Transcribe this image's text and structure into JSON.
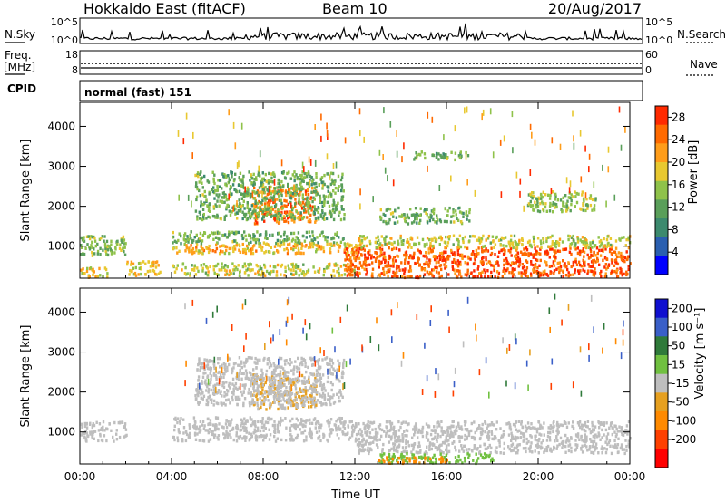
{
  "header": {
    "station": "Hokkaido East (fitACF)",
    "beam": "Beam 10",
    "date": "20/Aug/2017"
  },
  "noise_panel": {
    "left_label": "N.Sky",
    "right_label": "N.Search",
    "left_ticks": [
      "10^5",
      "10^0"
    ],
    "right_ticks": [
      "10^5",
      "10^0"
    ]
  },
  "freq_panel": {
    "left_label_1": "Freq.",
    "left_label_2": "[MHz]",
    "right_label": "Nave",
    "left_ticks": [
      "18",
      "8"
    ],
    "right_ticks": [
      "60",
      "0"
    ]
  },
  "cpid_panel": {
    "label": "CPID",
    "text": "normal (fast) 151"
  },
  "colors": {
    "power": [
      "#0000ff",
      "#2a5fb0",
      "#3c8a6e",
      "#5a9f5a",
      "#8fc24a",
      "#e8c830",
      "#ff9d1a",
      "#ff6a00",
      "#ff2a00"
    ],
    "velocity": [
      "#1010d0",
      "#3a5fc8",
      "#2f7a3a",
      "#70c040",
      "#bebebe",
      "#e6a020",
      "#ff8a00",
      "#ff4000",
      "#ff0000"
    ]
  },
  "chart_data": [
    {
      "type": "heatmap",
      "title": "Power",
      "xlabel": "",
      "ylabel": "Slant Range [km]",
      "x_ticks": [
        "00:00",
        "04:00",
        "08:00",
        "12:00",
        "16:00",
        "20:00",
        "00:00"
      ],
      "y_ticks": [
        "1000",
        "2000",
        "3000",
        "4000"
      ],
      "ylim": [
        200,
        4600
      ],
      "colorbar": {
        "label": "Power [dB]",
        "ticks": [
          "4",
          "8",
          "12",
          "16",
          "20",
          "24",
          "28"
        ],
        "range": [
          0,
          30
        ]
      },
      "regions": [
        {
          "t": [
            0,
            2.0
          ],
          "r": [
            800,
            1300
          ],
          "v": 14
        },
        {
          "t": [
            0,
            1.2
          ],
          "r": [
            250,
            500
          ],
          "v": 18
        },
        {
          "t": [
            2.0,
            3.5
          ],
          "r": [
            300,
            650
          ],
          "v": 19
        },
        {
          "t": [
            4.0,
            11.5
          ],
          "r": [
            1100,
            1400
          ],
          "v": 13
        },
        {
          "t": [
            4.0,
            12.0
          ],
          "r": [
            850,
            1100
          ],
          "v": 20
        },
        {
          "t": [
            4.0,
            12.0
          ],
          "r": [
            300,
            600
          ],
          "v": 17
        },
        {
          "t": [
            7.5,
            10.3
          ],
          "r": [
            1600,
            2500
          ],
          "v": 24
        },
        {
          "t": [
            5.0,
            11.5
          ],
          "r": [
            1700,
            2900
          ],
          "v": 13
        },
        {
          "t": [
            11.5,
            24.0
          ],
          "r": [
            250,
            1000
          ],
          "v": 26
        },
        {
          "t": [
            12.0,
            24.0
          ],
          "r": [
            1000,
            1300
          ],
          "v": 17
        },
        {
          "t": [
            13.0,
            17.0
          ],
          "r": [
            1600,
            2000
          ],
          "v": 13
        },
        {
          "t": [
            14.5,
            17.0
          ],
          "r": [
            3200,
            3400
          ],
          "v": 13
        },
        {
          "t": [
            19.5,
            22.5
          ],
          "r": [
            1900,
            2400
          ],
          "v": 15
        }
      ]
    },
    {
      "type": "heatmap",
      "title": "Velocity",
      "xlabel": "Time UT",
      "ylabel": "Slant Range [km]",
      "x_ticks": [
        "00:00",
        "04:00",
        "08:00",
        "12:00",
        "16:00",
        "20:00",
        "00:00"
      ],
      "y_ticks": [
        "1000",
        "2000",
        "3000",
        "4000"
      ],
      "ylim": [
        200,
        4600
      ],
      "colorbar": {
        "label": "Velocity [m s⁻¹]",
        "ticks": [
          "200",
          "100",
          "50",
          "15",
          "-15",
          "-50",
          "-100",
          "-200"
        ],
        "range": [
          -250,
          250
        ]
      },
      "regions": [
        {
          "t": [
            0,
            2.0
          ],
          "r": [
            800,
            1300
          ],
          "v": 0
        },
        {
          "t": [
            4.0,
            12.0
          ],
          "r": [
            800,
            1400
          ],
          "v": 0
        },
        {
          "t": [
            12.0,
            24.0
          ],
          "r": [
            500,
            1300
          ],
          "v": 0
        },
        {
          "t": [
            7.5,
            10.3
          ],
          "r": [
            1600,
            2500
          ],
          "v": -20
        },
        {
          "t": [
            5.0,
            11.5
          ],
          "r": [
            1700,
            2900
          ],
          "v": 0
        },
        {
          "t": [
            13.0,
            18.0
          ],
          "r": [
            250,
            500
          ],
          "v": 30
        },
        {
          "t": [
            13.0,
            16.0
          ],
          "r": [
            250,
            400
          ],
          "v": -60
        }
      ]
    }
  ]
}
